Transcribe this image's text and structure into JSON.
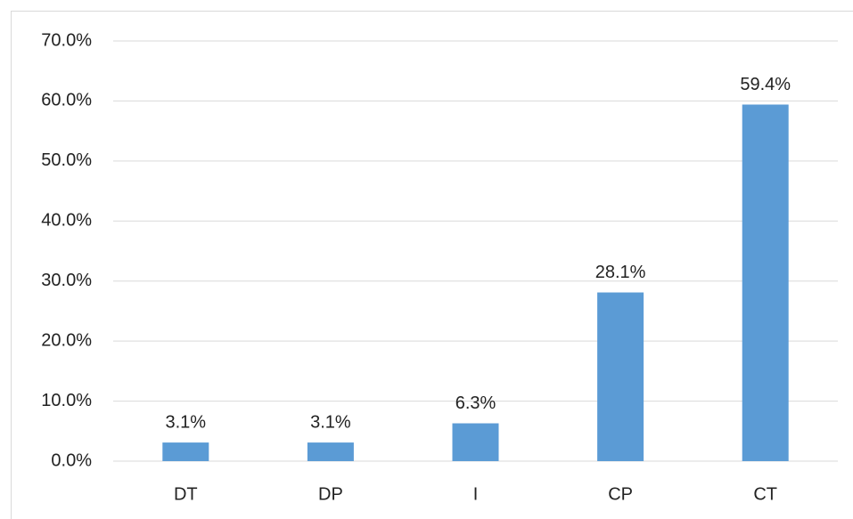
{
  "chart_data": {
    "type": "bar",
    "categories": [
      "DT",
      "DP",
      "I",
      "CP",
      "CT"
    ],
    "values": [
      3.1,
      3.1,
      6.3,
      28.1,
      59.4
    ],
    "value_labels": [
      "3.1%",
      "3.1%",
      "6.3%",
      "28.1%",
      "59.4%"
    ],
    "color": "#5b9bd5",
    "ylim": [
      0,
      70
    ],
    "yticks": [
      {
        "value": 0,
        "label": "0.0%"
      },
      {
        "value": 10,
        "label": "10.0%"
      },
      {
        "value": 20,
        "label": "20.0%"
      },
      {
        "value": 30,
        "label": "30.0%"
      },
      {
        "value": 40,
        "label": "40.0%"
      },
      {
        "value": 50,
        "label": "50.0%"
      },
      {
        "value": 60,
        "label": "60.0%"
      },
      {
        "value": 70,
        "label": "70.0%"
      }
    ],
    "grid": true
  }
}
